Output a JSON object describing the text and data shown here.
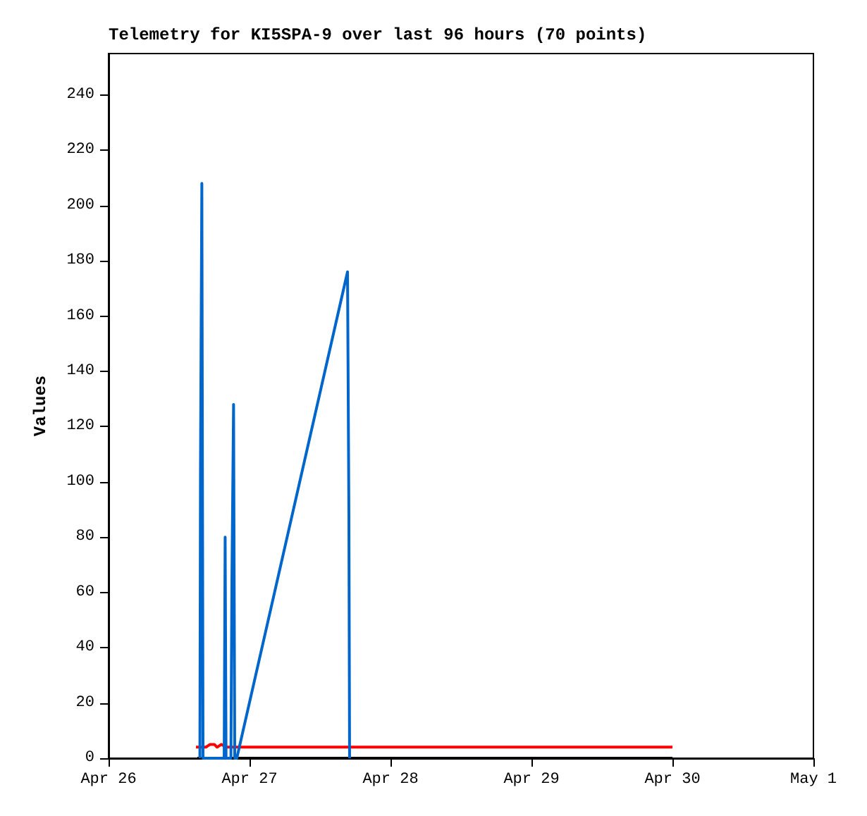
{
  "chart_data": {
    "type": "line",
    "title": "Telemetry for KI5SPA-9 over last 96 hours (70 points)",
    "ylabel": "Values",
    "xlim": [
      "--04-26",
      "--05-01"
    ],
    "xticks": [
      {
        "value": "--04-26",
        "label": "Apr 26"
      },
      {
        "value": "--04-27",
        "label": "Apr 27"
      },
      {
        "value": "--04-28",
        "label": "Apr 28"
      },
      {
        "value": "--04-29",
        "label": "Apr 29"
      },
      {
        "value": "--04-30",
        "label": "Apr 30"
      },
      {
        "value": "--05-01",
        "label": "May 1"
      }
    ],
    "ylim": [
      0,
      255
    ],
    "yticks": [
      0,
      20,
      40,
      60,
      80,
      100,
      120,
      140,
      160,
      180,
      200,
      220,
      240
    ],
    "grid": false,
    "marker": "none",
    "line_style": "solid",
    "series": [
      {
        "color": "#000000",
        "x": [
          "--04-26T15:07",
          "--04-30T00:00"
        ],
        "values": [
          0,
          0
        ]
      },
      {
        "color": "#ff0000",
        "x": [
          "--04-26T14:53",
          "--04-26T16:34",
          "--04-26T17:17",
          "--04-26T18:00",
          "--04-26T18:29",
          "--04-26T19:12",
          "--04-26T20:00",
          "--04-30T00:00"
        ],
        "values": [
          4,
          4,
          5,
          5,
          4,
          5,
          4,
          4
        ]
      },
      {
        "color": "#0066cc",
        "x": [
          "--04-26T15:33",
          "--04-26T15:39",
          "--04-26T15:53",
          "--04-26T16:05",
          "--04-26T19:41",
          "--04-26T19:51",
          "--04-26T20:00",
          "--04-26T20:50",
          "--04-26T21:00",
          "--04-26T21:17",
          "--04-26T21:29",
          "--04-26T21:50",
          "--04-27T16:41",
          "--04-27T16:55",
          "--04-27T17:02"
        ],
        "values": [
          0,
          104,
          208,
          0,
          0,
          80,
          0,
          0,
          64,
          128,
          0,
          0,
          176,
          88,
          0
        ]
      }
    ]
  }
}
